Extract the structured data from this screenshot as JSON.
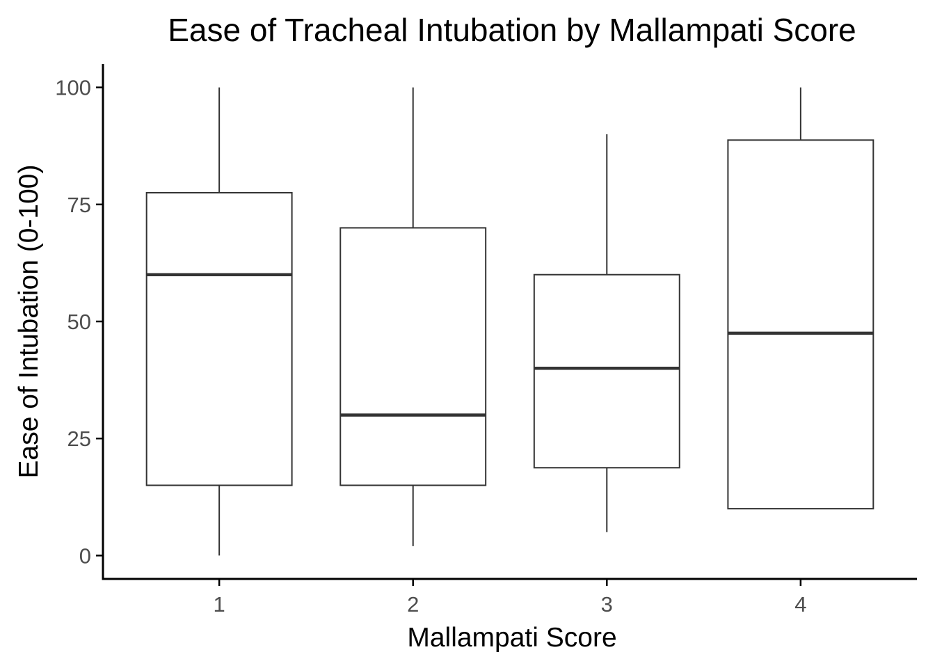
{
  "chart_data": {
    "type": "box",
    "title": "Ease of Tracheal Intubation by Mallampati Score",
    "xlabel": "Mallampati Score",
    "ylabel": "Ease of Intubation (0-100)",
    "ylim": [
      -5,
      105
    ],
    "yticks": [
      0,
      25,
      50,
      75,
      100
    ],
    "categories": [
      "1",
      "2",
      "3",
      "4"
    ],
    "boxes": [
      {
        "category": "1",
        "whisker_low": 0,
        "q1": 15,
        "median": 60,
        "q3": 77.5,
        "whisker_high": 100
      },
      {
        "category": "2",
        "whisker_low": 2,
        "q1": 15,
        "median": 30,
        "q3": 70,
        "whisker_high": 100
      },
      {
        "category": "3",
        "whisker_low": 5,
        "q1": 18.75,
        "median": 40,
        "q3": 60,
        "whisker_high": 90
      },
      {
        "category": "4",
        "whisker_low": 10,
        "q1": 10,
        "median": 47.5,
        "q3": 88.75,
        "whisker_high": 100
      }
    ],
    "grid": false,
    "colors": {
      "box_line": "#333333",
      "axis_line": "#000000",
      "tick_text": "#4d4d4d"
    }
  }
}
